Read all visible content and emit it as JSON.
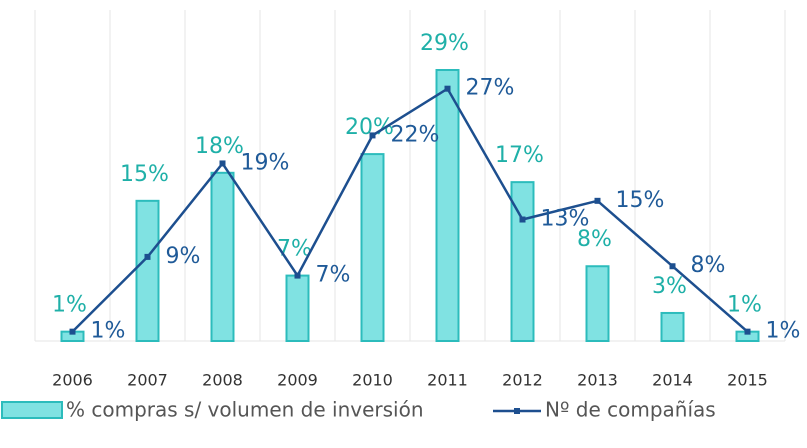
{
  "chart_data": {
    "type": "bar_line",
    "categories": [
      "2006",
      "2007",
      "2008",
      "2009",
      "2010",
      "2011",
      "2012",
      "2013",
      "2014",
      "2015"
    ],
    "series": [
      {
        "name": "% compras s/ volumen de inversión",
        "type": "bar",
        "color": "#80e2e2",
        "label_color": "#1fb0a8",
        "values": [
          1,
          15,
          18,
          7,
          20,
          29,
          17,
          8,
          3,
          1
        ],
        "value_labels": [
          "1%",
          "15%",
          "18%",
          "7%",
          "20%",
          "29%",
          "17%",
          "8%",
          "3%",
          "1%"
        ]
      },
      {
        "name": "Nº de compañías",
        "type": "line",
        "color": "#1d4f8f",
        "label_color": "#1f5a98",
        "values": [
          1,
          9,
          19,
          7,
          22,
          27,
          13,
          15,
          8,
          1
        ],
        "value_labels": [
          "1%",
          "9%",
          "19%",
          "7%",
          "22%",
          "27%",
          "13%",
          "15%",
          "8%",
          "1%"
        ]
      }
    ],
    "grid": true,
    "legend": "bottom"
  }
}
